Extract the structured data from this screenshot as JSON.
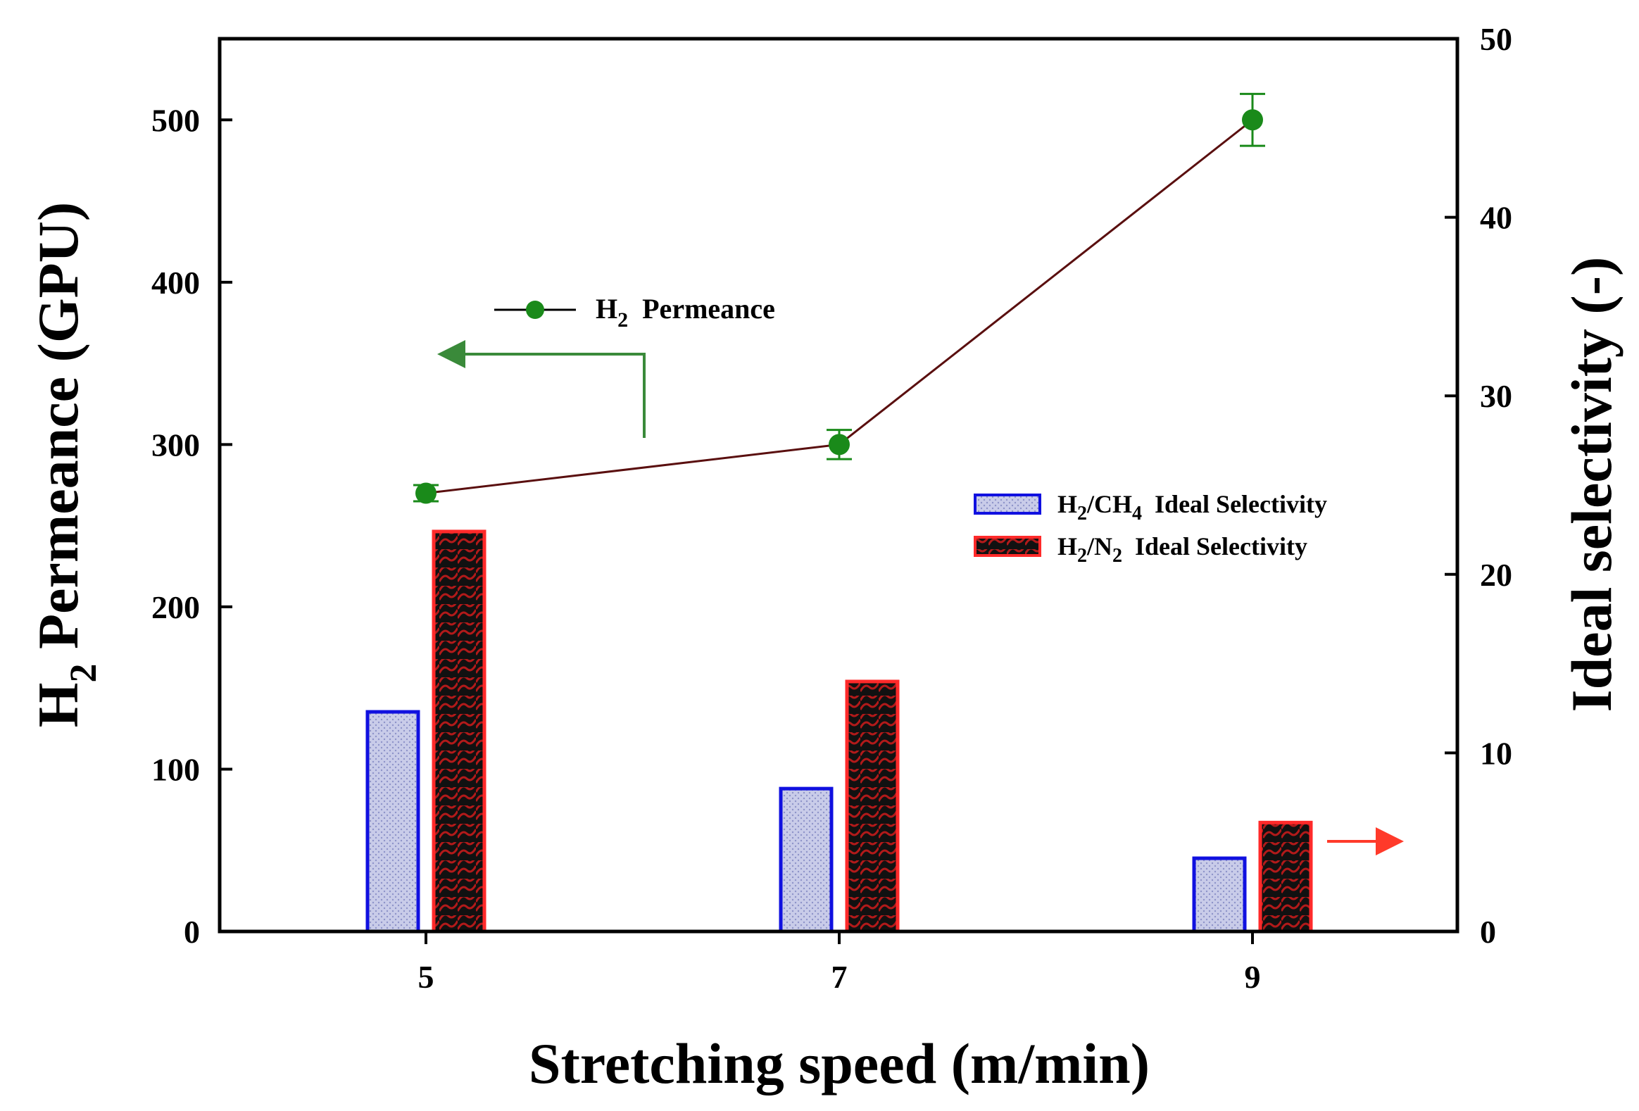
{
  "chart_data": {
    "type": "bar+line",
    "x_categories": [
      "5",
      "7",
      "9"
    ],
    "xlabel": "Stretching speed (m/min)",
    "left_axis": {
      "label_parts": [
        "H",
        "2",
        " Permeance (GPU)"
      ],
      "ylim": [
        0,
        550
      ],
      "ticks": [
        0,
        100,
        200,
        300,
        400,
        500
      ]
    },
    "right_axis": {
      "label": "Ideal selectivity (-)",
      "ylim": [
        0,
        50
      ],
      "ticks": [
        0,
        10,
        20,
        30,
        40,
        50
      ]
    },
    "line_series": {
      "legend_parts": [
        "H",
        "2",
        "  Permeance"
      ],
      "axis": "left",
      "color": "#1a8a1a",
      "line_color": "#5a0f0f",
      "x": [
        "5",
        "7",
        "9"
      ],
      "values": [
        270,
        300,
        500
      ],
      "errors": [
        5,
        9,
        16
      ]
    },
    "bar_series": [
      {
        "legend_parts": [
          "H",
          "2",
          "/CH",
          "4",
          "  Ideal Selectivity"
        ],
        "axis": "right",
        "edge_color": "#1010e0",
        "fill_color": "#c8cbe8",
        "values": [
          12.3,
          8.0,
          4.1
        ]
      },
      {
        "legend_parts": [
          "H",
          "2",
          "/N",
          "2",
          "  Ideal Selectivity"
        ],
        "axis": "right",
        "edge_color": "#ff2a2a",
        "fill_color": "#111111",
        "values": [
          22.4,
          14.0,
          6.1
        ]
      }
    ],
    "annotations": [
      {
        "type": "arrow",
        "points_to": "left-axis",
        "color": "#3a8a3a"
      },
      {
        "type": "arrow",
        "points_to": "right-axis",
        "color": "#ff3a2a"
      }
    ]
  }
}
